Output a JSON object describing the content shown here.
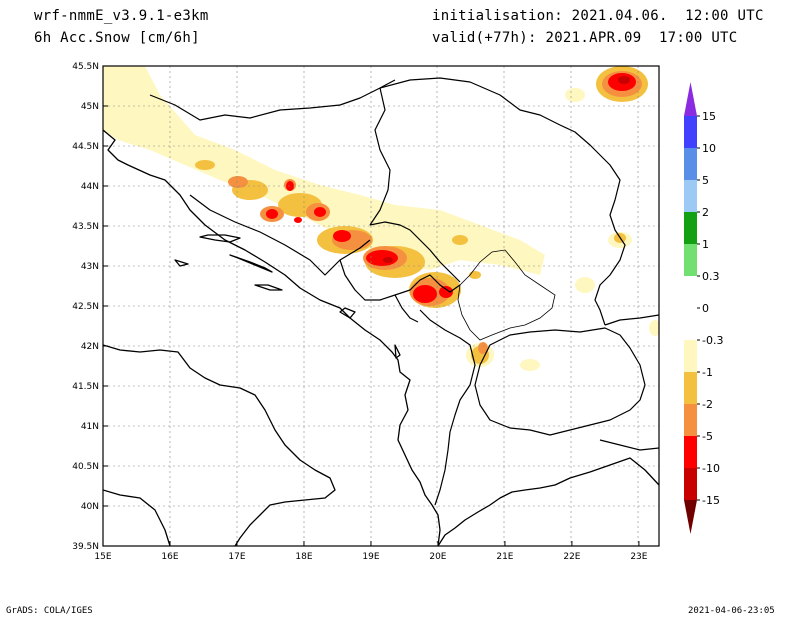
{
  "header": {
    "model": "wrf-nmmE_v3.9.1-e3km",
    "field": "6h Acc.Snow [cm/6h]",
    "init": "initialisation: 2021.04.06.  12:00 UTC",
    "valid": "valid(+77h): 2021.APR.09  17:00 UTC"
  },
  "map": {
    "lon_ticks": [
      "15E",
      "16E",
      "17E",
      "18E",
      "19E",
      "20E",
      "21E",
      "22E",
      "23E"
    ],
    "lat_ticks": [
      "45.5N",
      "45N",
      "44.5N",
      "44N",
      "43.5N",
      "43N",
      "42.5N",
      "42N",
      "41.5N",
      "41N",
      "40.5N",
      "40N",
      "39.5N"
    ],
    "lon_range": [
      15,
      23.3
    ],
    "lat_range": [
      39.5,
      45.5
    ]
  },
  "colorbar": {
    "labels": [
      "15",
      "10",
      "5",
      "2",
      "1",
      "0.3",
      "0",
      "-0.3",
      "-1",
      "-2",
      "-5",
      "-10",
      "-15"
    ],
    "colors": [
      "#4040ff",
      "#5a8fe8",
      "#9ccaf5",
      "#13a013",
      "#71e071",
      "#ffffff",
      "#ffffff",
      "#fff7c0",
      "#f4c040",
      "#f59040",
      "#ff0000",
      "#c80000",
      "#8b0000"
    ],
    "top_arrow_color": "#8a2be2",
    "bottom_arrow_color": "#700000"
  },
  "footer": {
    "left": "GrADS: COLA/IGES",
    "right": "2021-04-06-23:05"
  }
}
